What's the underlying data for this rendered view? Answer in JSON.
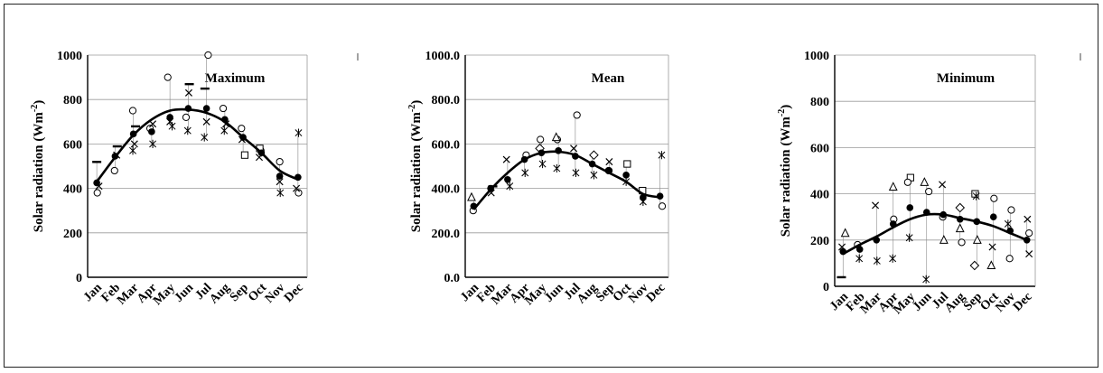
{
  "chart_data": [
    {
      "type": "scatter",
      "title": "Maximum",
      "ylabel": "Solar radiation (Wm-2)",
      "ylim": [
        0,
        1000
      ],
      "yticks": [
        "0",
        "200",
        "400",
        "600",
        "800",
        "1000"
      ],
      "categories": [
        "Jan",
        "Feb",
        "Mar",
        "Apr",
        "May",
        "Jun",
        "Jul",
        "Aug",
        "Sep",
        "Oct",
        "Nov",
        "Dec"
      ],
      "mean_series": [
        425,
        545,
        645,
        655,
        720,
        760,
        760,
        710,
        630,
        560,
        455,
        450
      ],
      "fit_curve": [
        430,
        540,
        640,
        710,
        750,
        755,
        740,
        700,
        630,
        560,
        480,
        440
      ],
      "scatter_points": [
        [
          1,
          380,
          "circle"
        ],
        [
          1,
          410,
          "x"
        ],
        [
          1,
          520,
          "dash"
        ],
        [
          2,
          480,
          "circle"
        ],
        [
          2,
          550,
          "x"
        ],
        [
          2,
          590,
          "dash"
        ],
        [
          3,
          750,
          "circle"
        ],
        [
          3,
          600,
          "x"
        ],
        [
          3,
          570,
          "star"
        ],
        [
          3,
          680,
          "dash"
        ],
        [
          4,
          670,
          "circle"
        ],
        [
          4,
          690,
          "x"
        ],
        [
          4,
          600,
          "star"
        ],
        [
          5,
          900,
          "circle"
        ],
        [
          5,
          700,
          "x"
        ],
        [
          5,
          680,
          "star"
        ],
        [
          6,
          720,
          "circle"
        ],
        [
          6,
          830,
          "x"
        ],
        [
          6,
          870,
          "dash"
        ],
        [
          6,
          660,
          "star"
        ],
        [
          7,
          1000,
          "circle"
        ],
        [
          7,
          700,
          "x"
        ],
        [
          7,
          850,
          "dash"
        ],
        [
          7,
          630,
          "star"
        ],
        [
          8,
          760,
          "circle"
        ],
        [
          8,
          690,
          "x"
        ],
        [
          8,
          660,
          "star"
        ],
        [
          9,
          670,
          "circle"
        ],
        [
          9,
          620,
          "x"
        ],
        [
          9,
          550,
          "square"
        ],
        [
          10,
          570,
          "circle"
        ],
        [
          10,
          540,
          "x"
        ],
        [
          10,
          580,
          "square"
        ],
        [
          11,
          520,
          "circle"
        ],
        [
          11,
          430,
          "x"
        ],
        [
          11,
          380,
          "star"
        ],
        [
          12,
          380,
          "circle"
        ],
        [
          12,
          650,
          "star"
        ],
        [
          12,
          400,
          "x"
        ]
      ]
    },
    {
      "type": "scatter",
      "title": "Mean",
      "ylabel": "Solar radiation (Wm-2)",
      "ylim": [
        0,
        1000
      ],
      "yticks": [
        "0.0",
        "200.0",
        "400.0",
        "600.0",
        "800.0",
        "1000.0"
      ],
      "categories": [
        "Jan",
        "Feb",
        "Mar",
        "Apr",
        "May",
        "Jun",
        "Jul",
        "Aug",
        "Sep",
        "Oct",
        "Nov",
        "Dec"
      ],
      "mean_series": [
        320,
        400,
        440,
        530,
        560,
        570,
        545,
        510,
        480,
        460,
        360,
        365
      ],
      "fit_curve": [
        305,
        395,
        470,
        530,
        560,
        565,
        550,
        510,
        470,
        430,
        375,
        360
      ],
      "scatter_points": [
        [
          1,
          360,
          "triangle"
        ],
        [
          1,
          300,
          "circle"
        ],
        [
          2,
          380,
          "x"
        ],
        [
          2,
          410,
          "dash"
        ],
        [
          3,
          530,
          "x"
        ],
        [
          3,
          410,
          "star"
        ],
        [
          4,
          550,
          "circle"
        ],
        [
          4,
          470,
          "star"
        ],
        [
          5,
          580,
          "diamond"
        ],
        [
          5,
          620,
          "circle"
        ],
        [
          5,
          510,
          "star"
        ],
        [
          6,
          620,
          "circle"
        ],
        [
          6,
          630,
          "triangle"
        ],
        [
          6,
          490,
          "star"
        ],
        [
          7,
          730,
          "circle"
        ],
        [
          7,
          470,
          "star"
        ],
        [
          7,
          580,
          "x"
        ],
        [
          8,
          550,
          "diamond"
        ],
        [
          8,
          460,
          "star"
        ],
        [
          9,
          520,
          "x"
        ],
        [
          9,
          480,
          "circle"
        ],
        [
          10,
          510,
          "square"
        ],
        [
          10,
          430,
          "star"
        ],
        [
          11,
          390,
          "square"
        ],
        [
          11,
          340,
          "star"
        ],
        [
          12,
          550,
          "star"
        ],
        [
          12,
          320,
          "circle"
        ]
      ]
    },
    {
      "type": "scatter",
      "title": "Minimum",
      "ylabel": "Solar radiation (Wm-2)",
      "ylim": [
        0,
        1000
      ],
      "yticks": [
        "0",
        "200",
        "400",
        "600",
        "800",
        "1000"
      ],
      "categories": [
        "Jan",
        "Feb",
        "Mar",
        "Apr",
        "May",
        "Jun",
        "Jul",
        "Aug",
        "Sep",
        "Oct",
        "Nov",
        "Dec"
      ],
      "mean_series": [
        150,
        160,
        200,
        270,
        340,
        320,
        310,
        290,
        280,
        300,
        240,
        200
      ],
      "fit_curve": [
        140,
        180,
        215,
        255,
        290,
        310,
        310,
        295,
        280,
        260,
        230,
        200
      ],
      "scatter_points": [
        [
          1,
          230,
          "triangle"
        ],
        [
          1,
          40,
          "dash"
        ],
        [
          1,
          170,
          "x"
        ],
        [
          2,
          120,
          "star"
        ],
        [
          2,
          180,
          "circle"
        ],
        [
          3,
          350,
          "x"
        ],
        [
          3,
          110,
          "star"
        ],
        [
          4,
          430,
          "triangle"
        ],
        [
          4,
          120,
          "star"
        ],
        [
          4,
          290,
          "circle"
        ],
        [
          5,
          470,
          "square"
        ],
        [
          5,
          450,
          "circle"
        ],
        [
          5,
          210,
          "star"
        ],
        [
          6,
          450,
          "triangle"
        ],
        [
          6,
          410,
          "circle"
        ],
        [
          6,
          30,
          "star"
        ],
        [
          7,
          440,
          "x"
        ],
        [
          7,
          200,
          "triangle"
        ],
        [
          7,
          300,
          "circle"
        ],
        [
          8,
          340,
          "diamond"
        ],
        [
          8,
          190,
          "circle"
        ],
        [
          8,
          250,
          "triangle"
        ],
        [
          9,
          400,
          "square"
        ],
        [
          9,
          200,
          "triangle"
        ],
        [
          9,
          90,
          "diamond"
        ],
        [
          9,
          390,
          "star"
        ],
        [
          10,
          380,
          "circle"
        ],
        [
          10,
          90,
          "triangle"
        ],
        [
          10,
          170,
          "x"
        ],
        [
          11,
          330,
          "circle"
        ],
        [
          11,
          120,
          "circle"
        ],
        [
          11,
          270,
          "star"
        ],
        [
          12,
          290,
          "x"
        ],
        [
          12,
          140,
          "x"
        ],
        [
          12,
          230,
          "circle"
        ]
      ]
    }
  ],
  "colors": {
    "ink": "#000000",
    "grid": "#9a9a9a",
    "frame": "#222222"
  }
}
